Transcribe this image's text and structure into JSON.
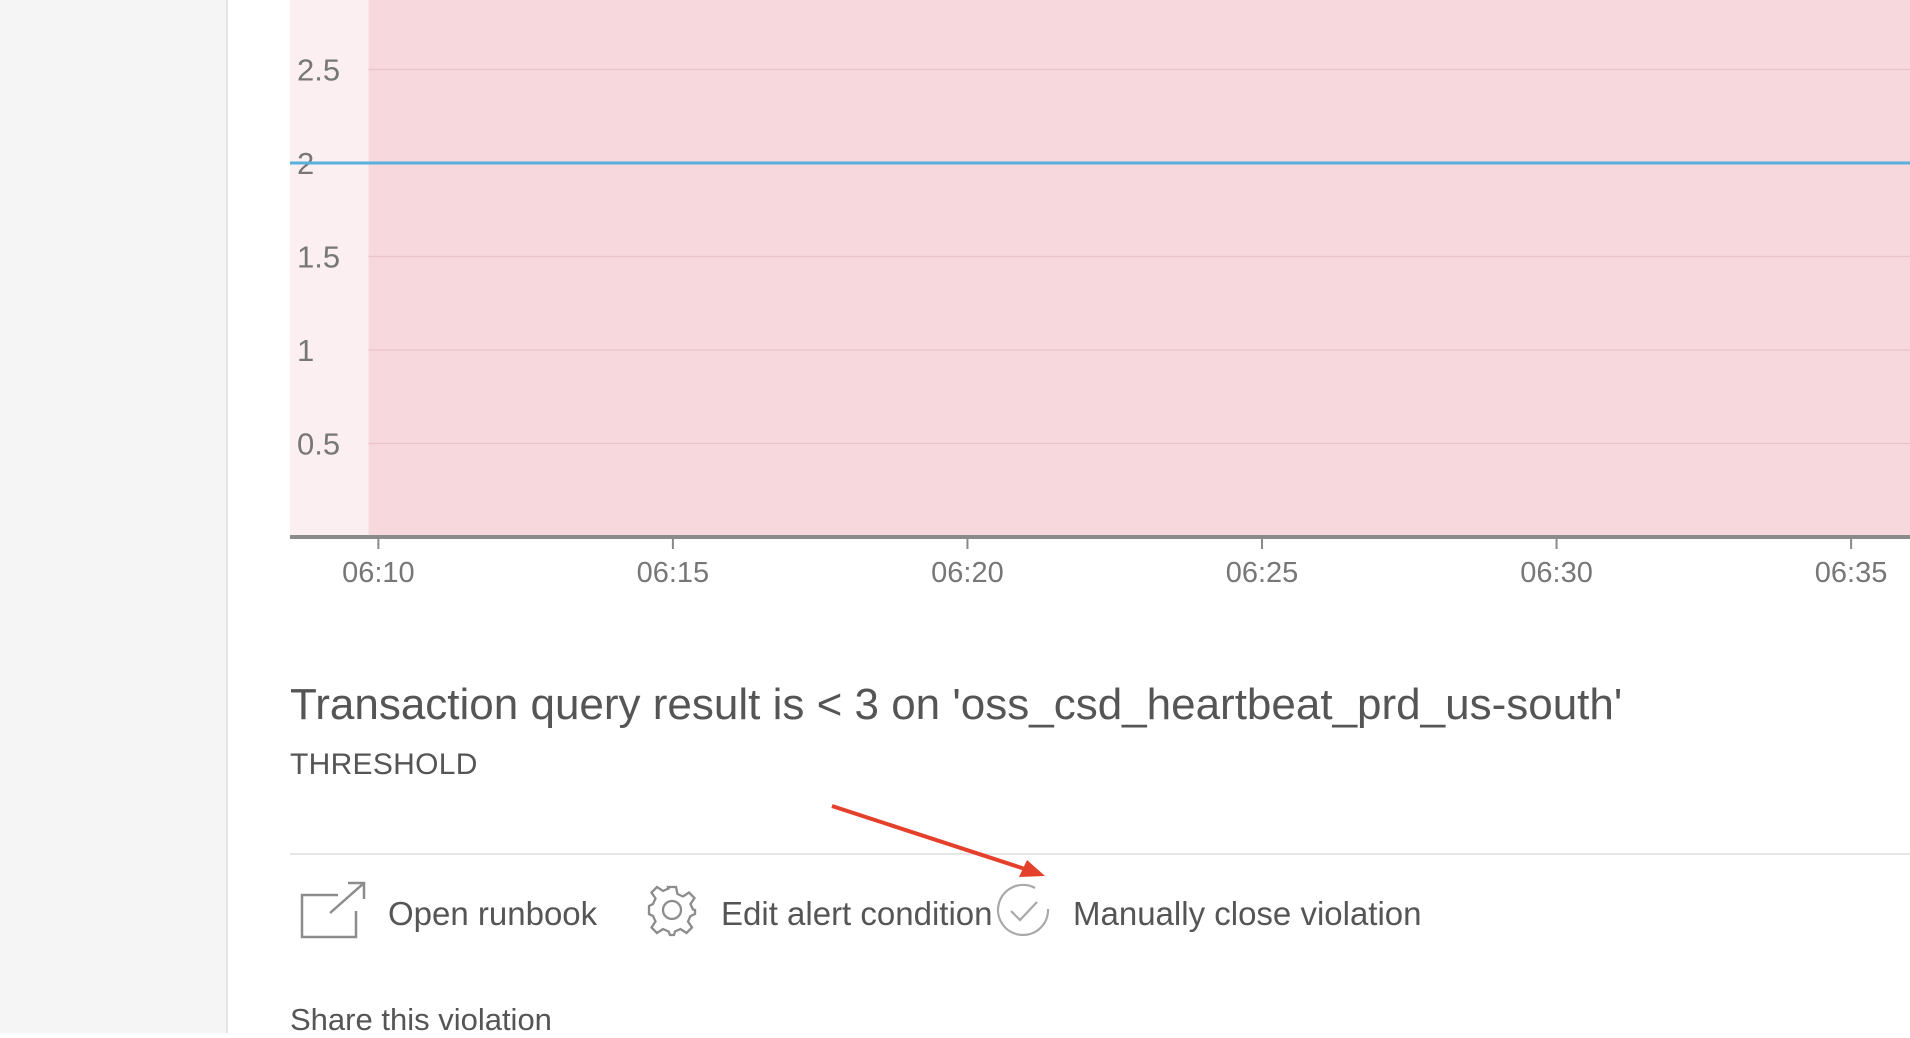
{
  "chart_data": {
    "type": "line",
    "y_ticks": [
      "2.5",
      "2",
      "1.5",
      "1",
      "0.5"
    ],
    "y_tick_values": [
      2.5,
      2,
      1.5,
      1,
      0.5
    ],
    "x_ticks": [
      "06:10",
      "06:15",
      "06:20",
      "06:25",
      "06:30",
      "06:35"
    ],
    "x_start": "06:08:30",
    "x_end": "06:36",
    "violation_start": "06:09:50",
    "series": [
      {
        "values": [
          {
            "x": "06:08:30",
            "y": 2
          },
          {
            "x": "06:36",
            "y": 2
          }
        ]
      }
    ],
    "colors": {
      "violation_fill": "#f6d8dd",
      "pre_violation_fill": "#fbeff1",
      "series_line": "#5ab0dc",
      "axis": "#8a8a8a",
      "grid": "#ebc4cb",
      "tick_text": "#777777"
    }
  },
  "violation": {
    "title": "Transaction query result is < 3 on 'oss_csd_heartbeat_prd_us-south'",
    "type": "THRESHOLD"
  },
  "actions": {
    "open_runbook": {
      "label": "Open runbook",
      "icon": "external-link-icon"
    },
    "edit_alert_condition": {
      "label": "Edit alert condition",
      "icon": "gear-icon"
    },
    "manually_close_violation": {
      "label": "Manually close violation",
      "icon": "check-circle-icon"
    }
  },
  "share_label": "Share this violation",
  "annotation": {
    "arrow_color": "#e4402b"
  }
}
